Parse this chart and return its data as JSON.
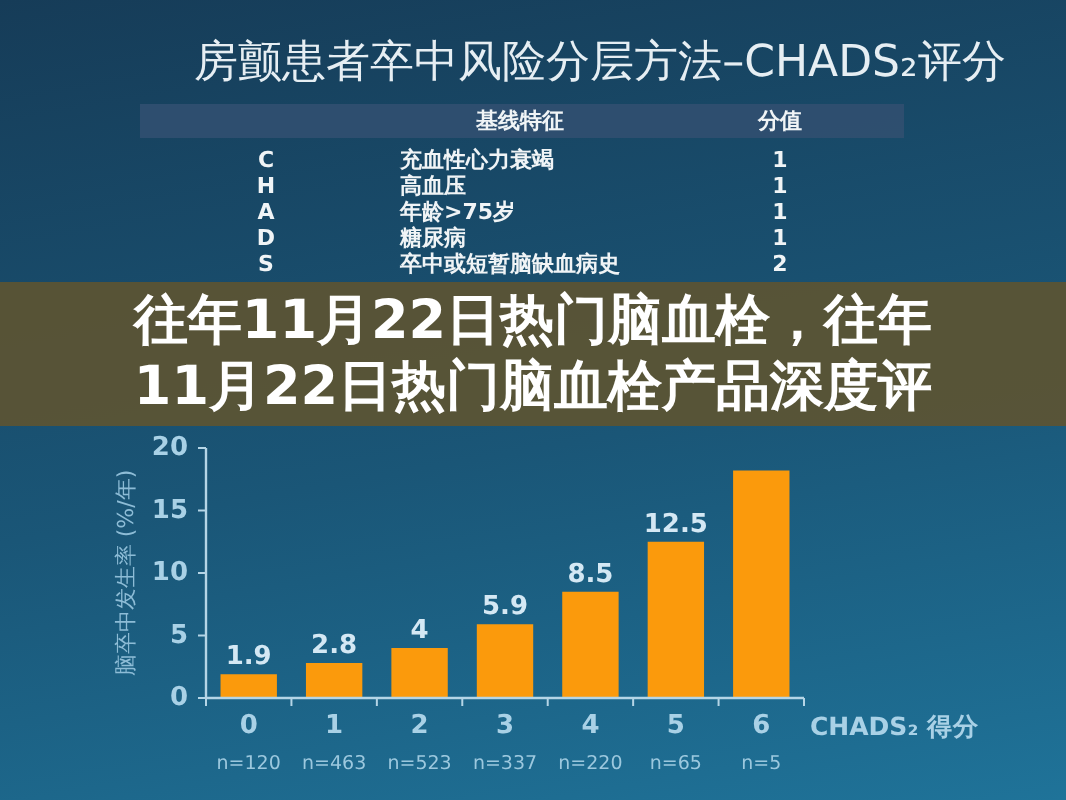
{
  "chart_data": [
    {
      "type": "other",
      "title": "房颤患者卒中风险分层方法–CHADS₂评分",
      "annotations": [
        "基线特征",
        "分值",
        "C",
        "充血性心力衰竭",
        "1",
        "H",
        "高血压",
        "1",
        "A",
        "年龄>75岁",
        "1",
        "D",
        "糖尿病",
        "1",
        "S",
        "卒中或短暂脑缺血病史",
        "2"
      ]
    },
    {
      "type": "bar",
      "categories": [
        "0",
        "1",
        "2",
        "3",
        "4",
        "5",
        "6"
      ],
      "values": [
        1.9,
        2.8,
        4,
        5.9,
        8.5,
        12.5,
        18.2
      ],
      "color": "#fb9a0c",
      "value_labels": [
        "1.9",
        "2.8",
        "4",
        "5.9",
        "8.5",
        "12.5",
        null
      ],
      "xlabel": "CHADS₂ 得分",
      "ylabel": "脑卒中发生率 (%/年)",
      "ylim": [
        0,
        20
      ],
      "yticks": [
        0,
        5,
        10,
        15,
        20
      ],
      "annotations": [
        "n=120",
        "n=463",
        "n=523",
        "n=337",
        "n=220",
        "n=65",
        "n=5"
      ]
    },
    {
      "type": "other",
      "title": "往年11月22日热门脑血栓，往年11月22日热门脑血栓产品深度评"
    }
  ]
}
